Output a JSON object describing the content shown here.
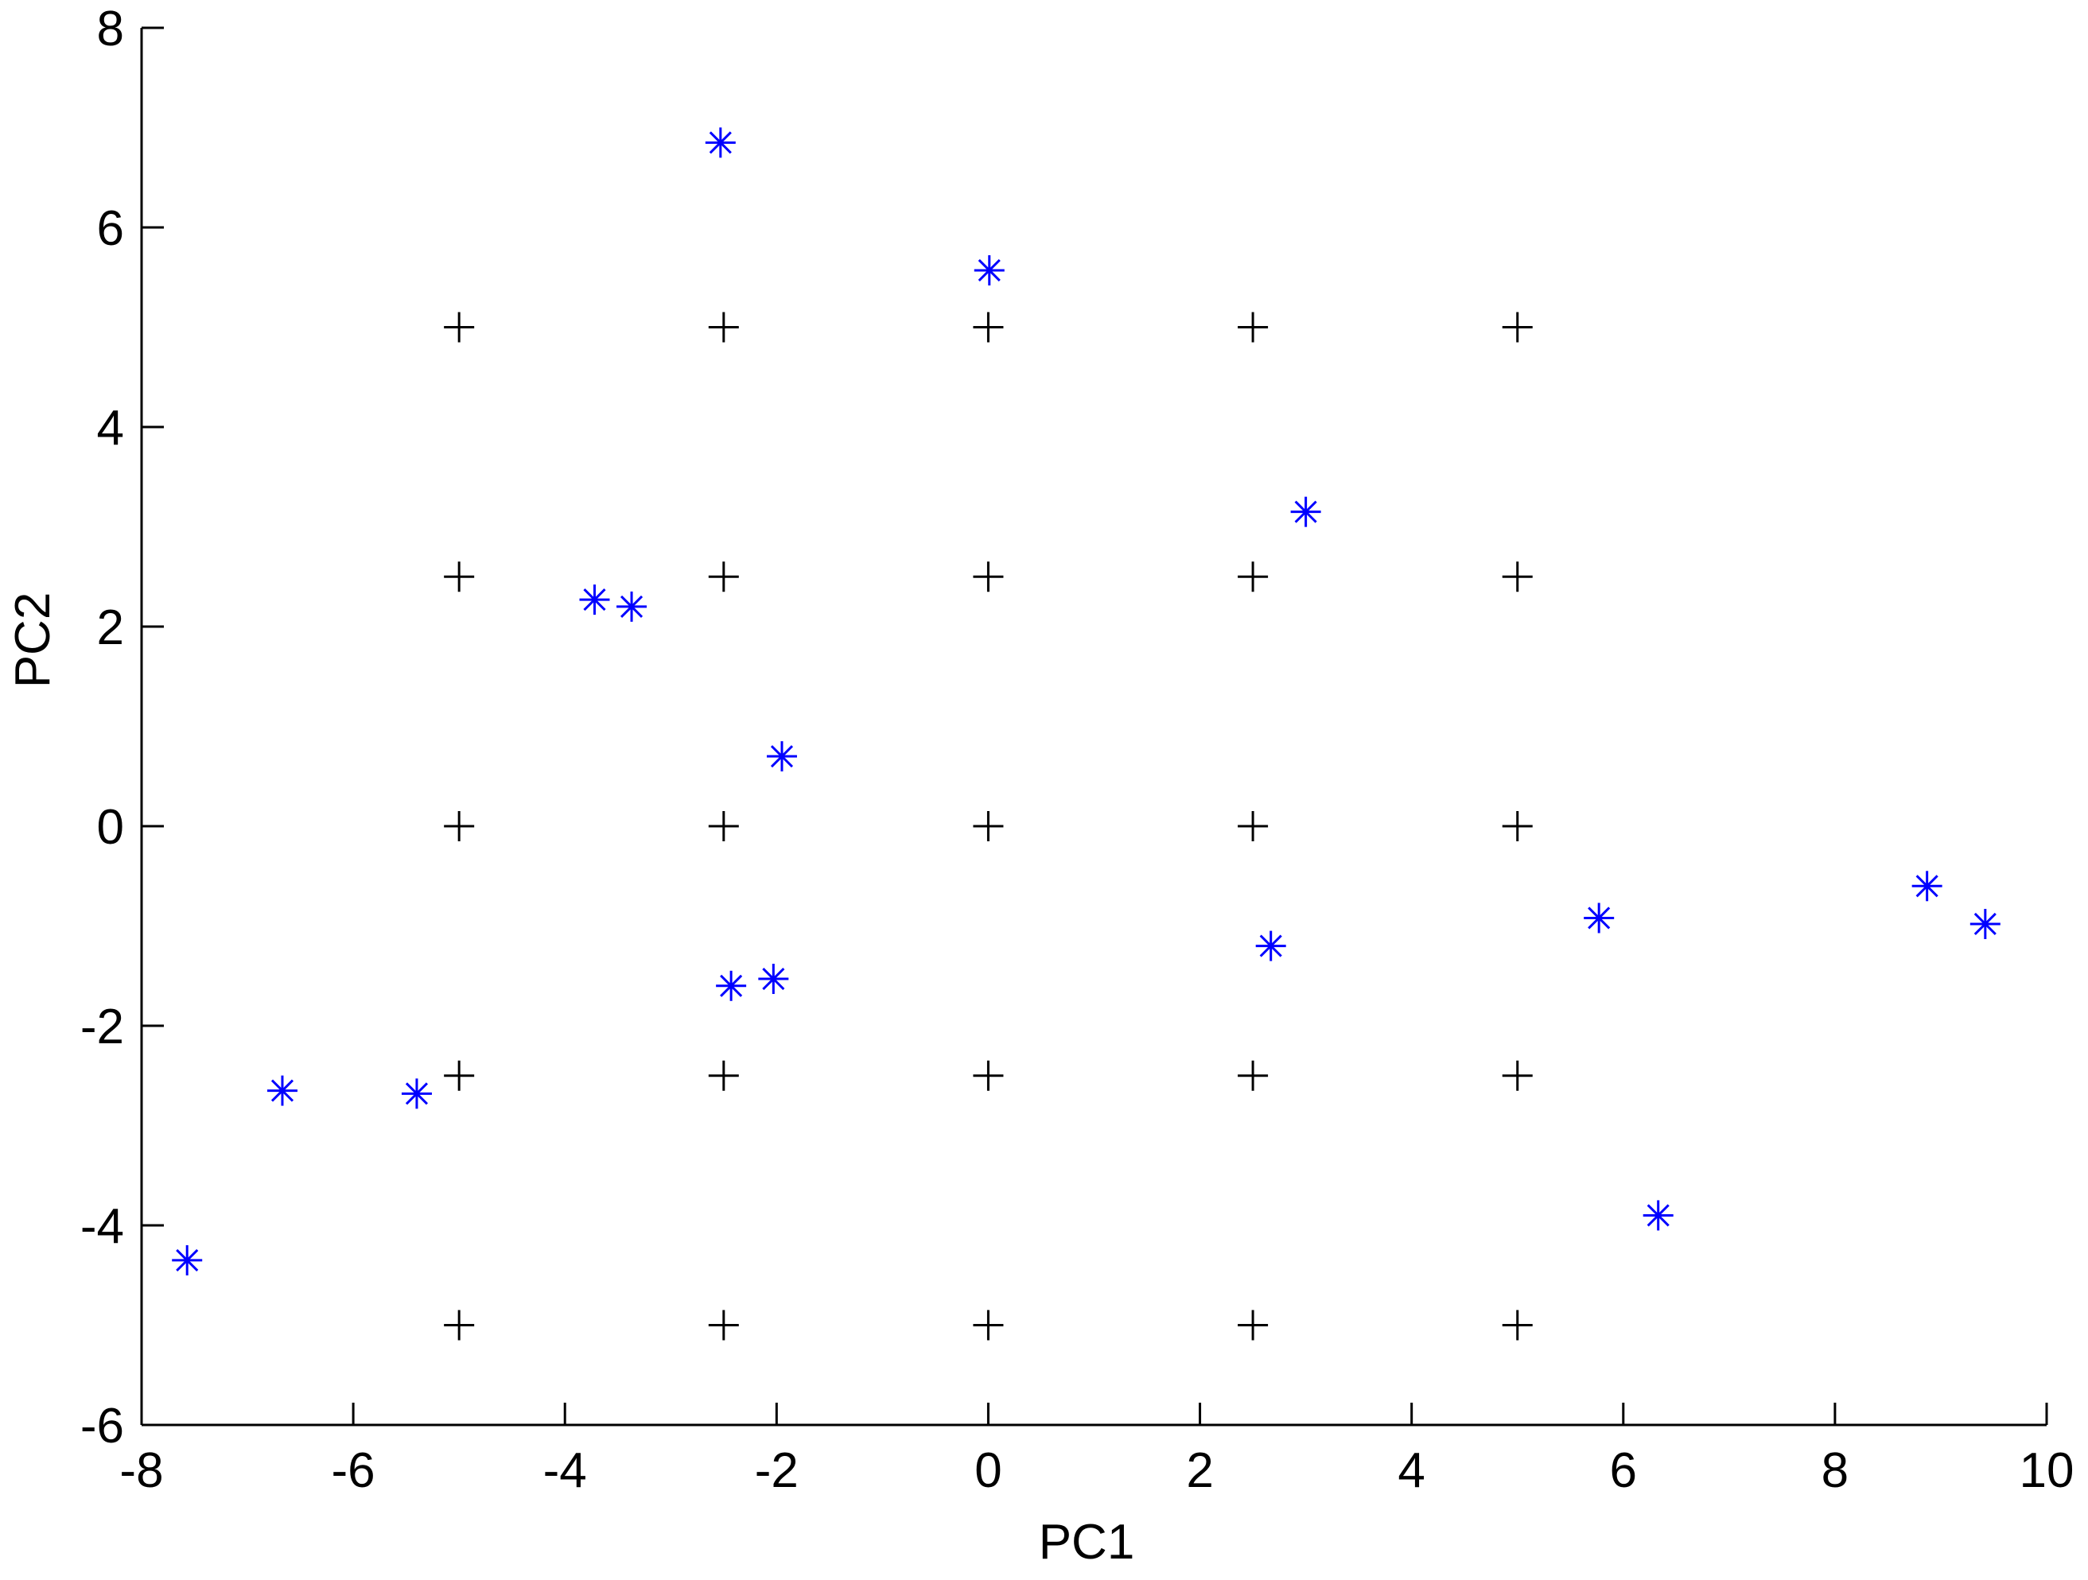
{
  "chart_data": {
    "type": "scatter",
    "title": "",
    "xlabel": "PC1",
    "ylabel": "PC2",
    "xlim": [
      -8,
      10
    ],
    "ylim": [
      -6,
      8
    ],
    "x_ticks": [
      -8,
      -6,
      -4,
      -2,
      0,
      2,
      4,
      6,
      8,
      10
    ],
    "y_ticks": [
      -6,
      -4,
      -2,
      0,
      2,
      4,
      6,
      8
    ],
    "grid": false,
    "legend": "none",
    "series": [
      {
        "marker": "plus",
        "color": "#000000",
        "points": [
          [
            -5,
            5
          ],
          [
            -2.5,
            5
          ],
          [
            0,
            5
          ],
          [
            2.5,
            5
          ],
          [
            5,
            5
          ],
          [
            -5,
            2.5
          ],
          [
            -2.5,
            2.5
          ],
          [
            0,
            2.5
          ],
          [
            2.5,
            2.5
          ],
          [
            5,
            2.5
          ],
          [
            -5,
            0
          ],
          [
            -2.5,
            0
          ],
          [
            0,
            0
          ],
          [
            2.5,
            0
          ],
          [
            5,
            0
          ],
          [
            -5,
            -2.5
          ],
          [
            -2.5,
            -2.5
          ],
          [
            0,
            -2.5
          ],
          [
            2.5,
            -2.5
          ],
          [
            5,
            -2.5
          ],
          [
            -5,
            -5
          ],
          [
            -2.5,
            -5
          ],
          [
            0,
            -5
          ],
          [
            2.5,
            -5
          ],
          [
            5,
            -5
          ]
        ]
      },
      {
        "marker": "asterisk",
        "color": "#0000ff",
        "points": [
          [
            -2.53,
            6.85
          ],
          [
            0.01,
            5.57
          ],
          [
            3.0,
            3.15
          ],
          [
            -3.72,
            2.27
          ],
          [
            -3.37,
            2.2
          ],
          [
            -1.95,
            0.7
          ],
          [
            -2.43,
            -1.6
          ],
          [
            -2.03,
            -1.53
          ],
          [
            2.67,
            -1.2
          ],
          [
            5.77,
            -0.92
          ],
          [
            8.87,
            -0.6
          ],
          [
            9.42,
            -0.98
          ],
          [
            -6.67,
            -2.65
          ],
          [
            -5.4,
            -2.68
          ],
          [
            -7.57,
            -4.35
          ],
          [
            6.33,
            -3.9
          ]
        ]
      }
    ]
  }
}
